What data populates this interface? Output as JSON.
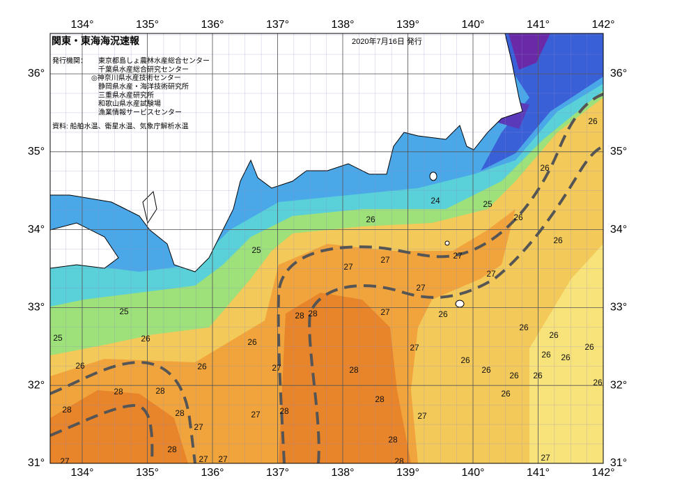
{
  "header": {
    "title": "関東・東海海況速報",
    "date": "2020年7月16日 発行",
    "issuer_heading": "発行機関：",
    "issuers": [
      "東京都島しょ農林水産総合センター",
      "千葉県水産総合研究センター",
      "◎神奈川県水産技術センター",
      "静岡県水産・海洋技術研究所",
      "三重県水産研究所",
      "和歌山県水産試験場",
      "漁業情報サービスセンター"
    ],
    "source": "資料: 船舶水温、衛星水温、気象庁解析水温"
  },
  "map": {
    "lon_ticks": [
      {
        "value": 134,
        "label": "134°"
      },
      {
        "value": 135,
        "label": "135°"
      },
      {
        "value": 136,
        "label": "136°"
      },
      {
        "value": 137,
        "label": "137°"
      },
      {
        "value": 138,
        "label": "138°"
      },
      {
        "value": 139,
        "label": "139°"
      },
      {
        "value": 140,
        "label": "140°"
      },
      {
        "value": 141,
        "label": "141°"
      },
      {
        "value": 142,
        "label": "142°"
      }
    ],
    "lat_ticks": [
      {
        "value": 36,
        "label": "36°"
      },
      {
        "value": 35,
        "label": "35°"
      },
      {
        "value": 34,
        "label": "34°"
      },
      {
        "value": 33,
        "label": "33°"
      },
      {
        "value": 32,
        "label": "32°"
      },
      {
        "value": 31,
        "label": "31°"
      }
    ],
    "isotherm_labels": [
      24,
      25,
      26,
      26,
      26,
      26,
      26,
      25,
      27,
      27,
      27,
      27,
      27,
      27,
      28,
      28,
      26,
      25,
      25,
      26,
      26,
      27,
      26,
      26,
      26,
      26,
      26,
      27,
      28,
      26,
      26,
      26,
      26,
      26,
      26,
      26,
      26,
      28,
      28,
      28,
      28,
      28,
      27,
      28,
      27,
      27,
      28,
      28,
      27,
      27,
      27,
      28,
      27
    ]
  }
}
